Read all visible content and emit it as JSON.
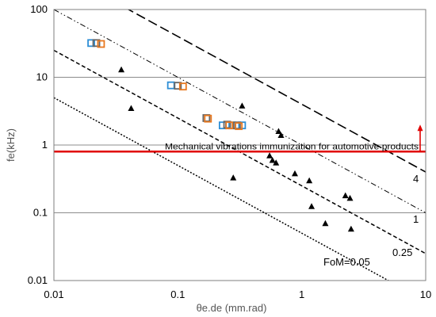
{
  "chart_data": {
    "type": "scatter",
    "xlabel": "θe.de (mm.rad)",
    "ylabel": "fe(kHz)",
    "xscale": "log",
    "yscale": "log",
    "xlim": [
      0.01,
      10
    ],
    "ylim": [
      0.01,
      100
    ],
    "x_ticks": [
      "0.01",
      "0.1",
      "1",
      "10"
    ],
    "y_ticks": [
      "0.01",
      "0.1",
      "1",
      "10",
      "100"
    ],
    "grid": "horizontal major",
    "fom_lines": [
      {
        "label": "FoM=0.05",
        "product": 0.05
      },
      {
        "label": "0.25",
        "product": 0.25
      },
      {
        "label": "1",
        "product": 1
      },
      {
        "label": "4",
        "product": 4
      }
    ],
    "threshold": {
      "label": "Mechanical vibrations immunization for automotive products",
      "y": 0.8,
      "color": "#e00000"
    },
    "series": [
      {
        "marker": "triangle",
        "color": "#000000",
        "points": [
          [
            0.035,
            13
          ],
          [
            0.042,
            3.5
          ],
          [
            0.33,
            3.8
          ],
          [
            0.28,
            0.33
          ],
          [
            0.65,
            1.6
          ],
          [
            0.68,
            1.4
          ],
          [
            0.55,
            0.7
          ],
          [
            0.58,
            0.6
          ],
          [
            0.62,
            0.55
          ],
          [
            0.88,
            0.38
          ],
          [
            1.15,
            0.3
          ],
          [
            1.2,
            0.125
          ],
          [
            1.55,
            0.07
          ],
          [
            2.25,
            0.18
          ],
          [
            2.45,
            0.165
          ],
          [
            2.5,
            0.058
          ]
        ]
      },
      {
        "marker": "square-open",
        "color": "#2e8fd6",
        "points": [
          [
            0.02,
            32
          ],
          [
            0.088,
            7.6
          ],
          [
            0.23,
            1.95
          ],
          [
            0.275,
            1.95
          ],
          [
            0.33,
            1.95
          ]
        ]
      },
      {
        "marker": "square-open",
        "color": "#666666",
        "points": [
          [
            0.022,
            32
          ],
          [
            0.1,
            7.5
          ],
          [
            0.17,
            2.5
          ],
          [
            0.25,
            2.0
          ],
          [
            0.3,
            1.95
          ]
        ]
      },
      {
        "marker": "square-open",
        "color": "#e8781f",
        "points": [
          [
            0.024,
            31
          ],
          [
            0.11,
            7.3
          ],
          [
            0.175,
            2.45
          ],
          [
            0.26,
            1.95
          ],
          [
            0.31,
            1.9
          ]
        ]
      }
    ]
  }
}
